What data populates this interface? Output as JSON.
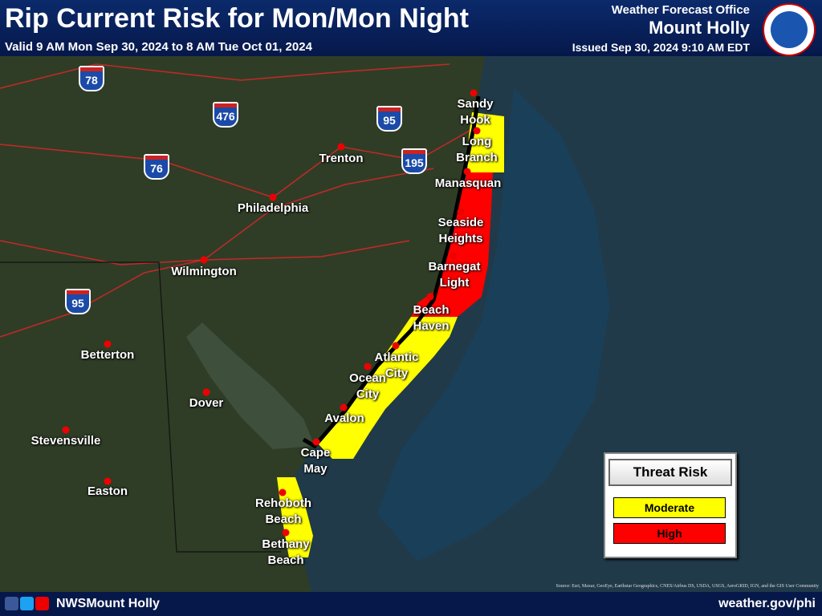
{
  "header": {
    "title": "Rip Current Risk for Mon/Mon Night",
    "valid": "Valid 9 AM Mon Sep 30, 2024 to 8 AM Tue Oct 01, 2024",
    "office_label": "Weather Forecast Office",
    "office_name": "Mount Holly",
    "issued": "Issued Sep 30, 2024 9:10 AM EDT"
  },
  "map": {
    "places": [
      "Sandy Hook",
      "Long Branch",
      "Manasquan",
      "Seaside Heights",
      "Barnegat Light",
      "Beach Haven",
      "Atlantic City",
      "Ocean City",
      "Avalon",
      "Cape May",
      "Rehoboth Beach",
      "Bethany Beach",
      "Trenton",
      "Philadelphia",
      "Wilmington",
      "Betterton",
      "Dover",
      "Stevensville",
      "Easton"
    ],
    "highways": [
      "78",
      "476",
      "95",
      "76",
      "195",
      "95"
    ],
    "source": "Source: Esri, Maxar, GeoEye, Earthstar Geographics, CNES/Airbus DS, USDA, USGS, AeroGRID, IGN, and the GIS User Community"
  },
  "legend": {
    "title": "Threat Risk",
    "items": [
      "Moderate",
      "High"
    ]
  },
  "footer": {
    "social": "NWSMount Holly",
    "url": "weather.gov/phi"
  }
}
